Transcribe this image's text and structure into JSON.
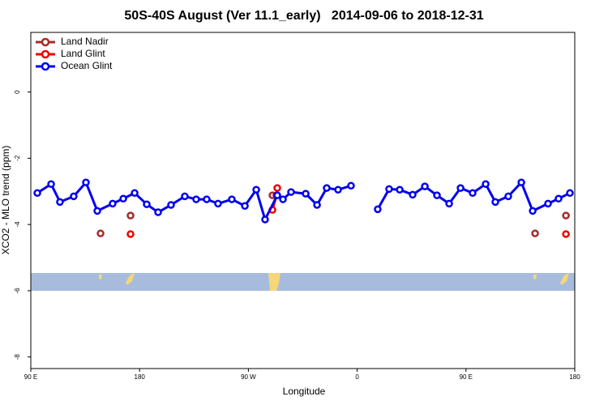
{
  "chart_data": {
    "type": "line",
    "title": "50S-40S August (Ver 11.1_early)   2014-09-06 to 2018-12-31",
    "x_label": "Longitude",
    "y_label": "XCO2 - MLO trend (ppm)",
    "xlim": [
      90,
      540
    ],
    "xticks": [
      {
        "value": 90,
        "label": "90 E"
      },
      {
        "value": 180,
        "label": "180"
      },
      {
        "value": 270,
        "label": "90 W"
      },
      {
        "value": 360,
        "label": "0"
      },
      {
        "value": 450,
        "label": "90 E"
      },
      {
        "value": 540,
        "label": "180"
      }
    ],
    "ylim": [
      -8.35,
      1.8
    ],
    "yticks": [
      -8,
      -6,
      -4,
      -2,
      0
    ],
    "legend": "top-left",
    "series": [
      {
        "name": "Land Nadir",
        "color": "#a52a2a",
        "x": [
          147.7,
          null,
          172.5,
          null,
          289.9,
          null,
          507.2,
          null,
          532.7
        ],
        "values": [
          -4.27,
          null,
          -3.73,
          null,
          -3.12,
          null,
          -4.27,
          null,
          -3.73
        ]
      },
      {
        "name": "Land Glint",
        "color": "#ee0000",
        "x": [
          172.5,
          null,
          289.9,
          293.2,
          293.9,
          null,
          532.7
        ],
        "values": [
          -4.29,
          null,
          -3.56,
          -3.12,
          -2.9,
          null,
          -4.29
        ]
      },
      {
        "name": "Ocean Glint",
        "color": "#0000ee",
        "x": [
          95.4,
          106.8,
          114.1,
          125.5,
          135.6,
          145,
          157.7,
          166.5,
          175.9,
          185.9,
          195.3,
          206,
          217.4,
          226.8,
          235.5,
          244.9,
          256.3,
          267.1,
          276.5,
          283.8,
          293.9,
          298.6,
          305.3,
          317.4,
          326.8,
          334.8,
          344.2,
          354.9,
          null,
          377,
          386.4,
          395.2,
          405.9,
          416,
          426,
          436.1,
          445.5,
          455.5,
          466.3,
          474.3,
          485,
          495.8,
          505.2,
          517.9,
          526.6,
          536
        ],
        "values": [
          -3.05,
          -2.78,
          -3.32,
          -3.15,
          -2.73,
          -3.59,
          -3.37,
          -3.22,
          -3.05,
          -3.39,
          -3.63,
          -3.41,
          -3.15,
          -3.24,
          -3.24,
          -3.37,
          -3.24,
          -3.44,
          -2.95,
          -3.85,
          -3.12,
          -3.24,
          -3.02,
          -3.07,
          -3.41,
          -2.9,
          -2.95,
          -2.83,
          null,
          -3.54,
          -2.93,
          -2.95,
          -3.1,
          -2.85,
          -3.12,
          -3.37,
          -2.9,
          -3.05,
          -2.78,
          -3.32,
          -3.15,
          -2.73,
          -3.59,
          -3.37,
          -3.22,
          -3.05
        ]
      }
    ]
  }
}
